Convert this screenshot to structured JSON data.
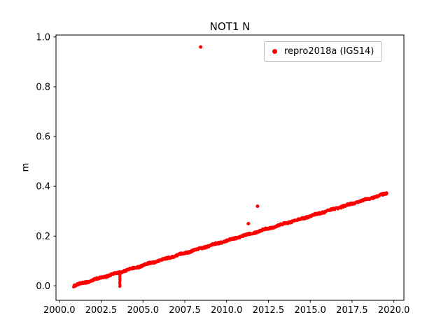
{
  "chart_data": {
    "type": "scatter",
    "title": "NOT1 N",
    "xlabel": "",
    "ylabel": "m",
    "xlim": [
      1999.8,
      2020.6
    ],
    "ylim": [
      -0.058,
      1.008
    ],
    "x_ticks": [
      2000.0,
      2002.5,
      2005.0,
      2007.5,
      2010.0,
      2012.5,
      2015.0,
      2017.5,
      2020.0
    ],
    "x_tick_labels": [
      "2000.0",
      "2002.5",
      "2005.0",
      "2007.5",
      "2010.0",
      "2012.5",
      "2015.0",
      "2017.5",
      "2020.0"
    ],
    "y_ticks": [
      0.0,
      0.2,
      0.4,
      0.6,
      0.8,
      1.0
    ],
    "y_tick_labels": [
      "0.0",
      "0.2",
      "0.4",
      "0.6",
      "0.8",
      "1.0"
    ],
    "grid": false,
    "background": "#ffffff",
    "legend": {
      "position": "upper right",
      "entries": [
        {
          "label": "repro2018a (IGS14)",
          "marker": "dot",
          "marker_color": "#ff0000"
        }
      ]
    },
    "series": [
      {
        "name": "repro2018a (IGS14)",
        "color": "#ff0000",
        "marker_size": 2,
        "trend": {
          "x_start": 2000.85,
          "x_end": 2019.6,
          "y_start": 0.0,
          "y_end": 0.372,
          "point_spacing_years": 0.019,
          "noise_y": 0.004
        },
        "anomalies": {
          "vertical_streak": {
            "x": 2003.62,
            "y_top": 0.05,
            "y_bottom": -0.006
          },
          "outliers": [
            [
              2008.45,
              0.96
            ],
            [
              2011.3,
              0.25
            ],
            [
              2011.85,
              0.32
            ]
          ]
        }
      }
    ]
  }
}
